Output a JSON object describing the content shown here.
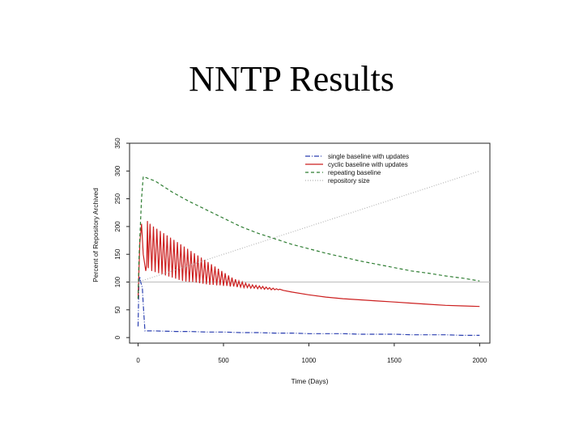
{
  "slide": {
    "title": "NNTP Results"
  },
  "chart_data": {
    "type": "line",
    "xlabel": "Time (Days)",
    "ylabel": "Percent of Repository Archived",
    "xlim": [
      -50,
      2060
    ],
    "ylim": [
      -10,
      350
    ],
    "xticks": [
      0,
      500,
      1000,
      1500,
      2000
    ],
    "yticks": [
      0,
      50,
      100,
      150,
      200,
      250,
      300,
      350
    ],
    "reference_line_y": 100,
    "legend_position": "top-right",
    "legend": [
      {
        "label": "single baseline with updates",
        "color": "#2a3fb0",
        "dash": "6,2,1,2"
      },
      {
        "label": "cyclic baseline with updates",
        "color": "#cc1f1f",
        "dash": ""
      },
      {
        "label": "repeating baseline",
        "color": "#2e7d32",
        "dash": "4,3"
      },
      {
        "label": "repository size",
        "color": "#b5b5b5",
        "dash": "1,2"
      }
    ],
    "series": [
      {
        "name": "single baseline with updates",
        "color": "#2a3fb0",
        "dash": "6,2,1,2",
        "x": [
          0,
          5,
          10,
          15,
          20,
          25,
          30,
          40,
          60,
          100,
          220,
          300,
          400,
          500,
          600,
          700,
          800,
          900,
          1000,
          1100,
          1200,
          1300,
          1400,
          1500,
          1600,
          1700,
          1800,
          1900,
          2000
        ],
        "y": [
          20,
          100,
          110,
          100,
          95,
          90,
          60,
          12,
          12,
          12,
          11,
          11,
          10,
          10,
          9,
          9,
          8,
          8,
          7,
          7,
          7,
          6,
          6,
          6,
          5,
          5,
          5,
          4,
          4
        ]
      },
      {
        "name": "cyclic baseline with updates",
        "color": "#cc1f1f",
        "dash": "",
        "x": [
          0,
          10,
          20,
          30,
          45,
          50,
          55,
          60,
          70,
          80,
          90,
          100,
          110,
          120,
          130,
          140,
          150,
          160,
          170,
          180,
          190,
          200,
          210,
          220,
          230,
          240,
          250,
          260,
          270,
          280,
          290,
          300,
          310,
          320,
          330,
          340,
          350,
          360,
          370,
          380,
          390,
          400,
          410,
          420,
          430,
          440,
          450,
          460,
          470,
          480,
          490,
          500,
          510,
          520,
          530,
          540,
          550,
          560,
          570,
          580,
          590,
          600,
          610,
          620,
          630,
          640,
          650,
          660,
          670,
          680,
          690,
          700,
          710,
          720,
          730,
          740,
          750,
          760,
          770,
          780,
          790,
          800,
          810,
          820,
          830,
          850,
          900,
          1000,
          1100,
          1200,
          1300,
          1400,
          1500,
          1600,
          1700,
          1800,
          1900,
          2000
        ],
        "y": [
          70,
          170,
          205,
          150,
          120,
          130,
          210,
          125,
          205,
          120,
          200,
          118,
          196,
          116,
          192,
          114,
          188,
          112,
          184,
          110,
          180,
          108,
          176,
          106,
          172,
          104,
          168,
          102,
          164,
          101,
          160,
          100,
          156,
          100,
          152,
          99,
          148,
          98,
          144,
          97,
          140,
          96,
          136,
          95,
          132,
          95,
          128,
          94,
          124,
          94,
          120,
          93,
          116,
          93,
          112,
          92,
          108,
          92,
          105,
          91,
          102,
          91,
          100,
          90,
          98,
          90,
          96,
          89,
          95,
          89,
          94,
          88,
          93,
          88,
          92,
          87,
          91,
          87,
          90,
          86,
          89,
          86,
          88,
          86,
          87,
          85,
          82,
          77,
          73,
          70,
          68,
          66,
          64,
          62,
          60,
          58,
          57,
          56
        ]
      },
      {
        "name": "repeating baseline",
        "color": "#2e7d32",
        "dash": "4,3",
        "x": [
          0,
          5,
          10,
          20,
          30,
          100,
          200,
          300,
          400,
          500,
          600,
          700,
          800,
          900,
          1000,
          1100,
          1200,
          1300,
          1400,
          1500,
          1600,
          1700,
          1800,
          1900,
          2000
        ],
        "y": [
          70,
          140,
          180,
          250,
          290,
          282,
          262,
          245,
          230,
          215,
          200,
          188,
          178,
          168,
          160,
          152,
          145,
          138,
          132,
          126,
          120,
          116,
          111,
          107,
          102
        ]
      },
      {
        "name": "repository size",
        "color": "#b5b5b5",
        "dash": "1,2",
        "x": [
          0,
          500,
          1000,
          1500,
          2000
        ],
        "y": [
          100,
          150,
          200,
          250,
          300
        ]
      }
    ]
  }
}
